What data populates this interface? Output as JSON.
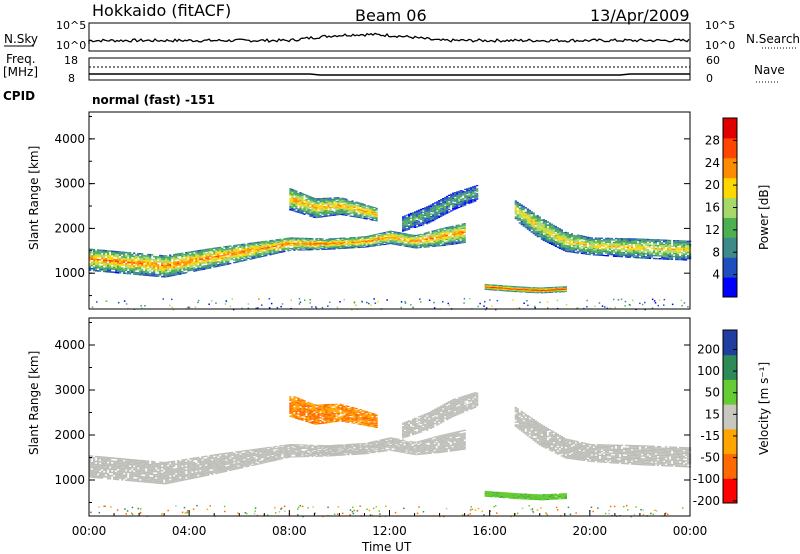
{
  "header": {
    "station": "Hokkaido (fitACF)",
    "beam": "Beam 06",
    "date": "13/Apr/2009"
  },
  "side_labels": {
    "nsky": "N.Sky",
    "nsearch": "N.Search",
    "freq_top": "Freq.",
    "freq_unit": "[MHz]",
    "nave": "Nave",
    "cpid": "CPID"
  },
  "noise_panel": {
    "left_ticks": [
      "10^5",
      "10^0"
    ],
    "right_ticks": [
      "10^5",
      "10^0"
    ]
  },
  "freq_panel": {
    "left_ticks": [
      "18",
      "8"
    ],
    "right_ticks": [
      "60",
      "0"
    ]
  },
  "cpid_text": "normal (fast) -151",
  "colors": {
    "power_scale": [
      "#0000ff",
      "#1f4fbf",
      "#3c8a8a",
      "#4caf50",
      "#a6d96a",
      "#ffd700",
      "#ff8c00",
      "#ff4500",
      "#e00000"
    ],
    "velocity_scale": [
      "#ff0000",
      "#ff6a00",
      "#ffa500",
      "#c8c8c0",
      "#66cc33",
      "#2e8b57",
      "#1f3fa0"
    ],
    "ground_scatter": "#bdbdb8"
  },
  "chart_data": [
    {
      "type": "heatmap",
      "title": "Power",
      "ylabel": "Slant Range [km]",
      "xlabel": "",
      "x_ticks": [],
      "y_ticks": [
        "1000",
        "2000",
        "3000",
        "4000"
      ],
      "ylim": [
        200,
        4600
      ],
      "xlim_hours": [
        0,
        24
      ],
      "colorbar": {
        "label": "Power [dB]",
        "ticks": [
          "4",
          "8",
          "12",
          "16",
          "20",
          "24",
          "28"
        ],
        "range": [
          0,
          32
        ]
      },
      "bands": [
        {
          "x": [
            0,
            3,
            5,
            7,
            8,
            9.5,
            11,
            12,
            13,
            14,
            15
          ],
          "center_km": [
            1300,
            1150,
            1350,
            1550,
            1650,
            1650,
            1700,
            1800,
            1700,
            1800,
            1900
          ],
          "width_km": [
            500,
            500,
            450,
            350,
            300,
            250,
            250,
            300,
            300,
            400,
            450
          ],
          "power_db": 24
        },
        {
          "x": [
            8,
            9,
            10,
            10.8,
            11.5
          ],
          "center_km": [
            2650,
            2450,
            2500,
            2400,
            2300
          ],
          "width_km": [
            500,
            450,
            400,
            350,
            300
          ],
          "power_db": 22
        },
        {
          "x": [
            12.5,
            13.5,
            14.5,
            15.5
          ],
          "center_km": [
            2100,
            2300,
            2600,
            2800
          ],
          "width_km": [
            350,
            400,
            400,
            350
          ],
          "power_db": 12
        },
        {
          "x": [
            17,
            18,
            19,
            20,
            22,
            24
          ],
          "center_km": [
            2400,
            2000,
            1700,
            1600,
            1550,
            1500
          ],
          "width_km": [
            450,
            500,
            450,
            400,
            450,
            450
          ],
          "power_db": 20
        },
        {
          "x": [
            15.8,
            17,
            18,
            19
          ],
          "center_km": [
            700,
            650,
            620,
            650
          ],
          "width_km": [
            120,
            120,
            120,
            120
          ],
          "power_db": 28
        }
      ]
    },
    {
      "type": "heatmap",
      "title": "Velocity",
      "ylabel": "Slant Range [km]",
      "xlabel": "Time UT",
      "x_ticks": [
        "00:00",
        "04:00",
        "08:00",
        "12:00",
        "16:00",
        "20:00",
        "00:00"
      ],
      "y_ticks": [
        "1000",
        "2000",
        "3000",
        "4000"
      ],
      "ylim": [
        200,
        4600
      ],
      "xlim_hours": [
        0,
        24
      ],
      "colorbar": {
        "label": "Velocity [m s⁻¹]",
        "ticks": [
          "200",
          "100",
          "50",
          "15",
          "-15",
          "-50",
          "-100",
          "-200"
        ],
        "range": [
          -250,
          250
        ]
      },
      "bands": [
        {
          "x": [
            0,
            3,
            5,
            7,
            8,
            9.5,
            11,
            12,
            13,
            14,
            15
          ],
          "center_km": [
            1300,
            1150,
            1350,
            1550,
            1650,
            1650,
            1700,
            1800,
            1700,
            1800,
            1900
          ],
          "width_km": [
            500,
            500,
            450,
            350,
            300,
            250,
            250,
            300,
            300,
            400,
            450
          ],
          "velocity": 0
        },
        {
          "x": [
            8,
            9,
            10,
            10.8,
            11.5
          ],
          "center_km": [
            2650,
            2450,
            2500,
            2400,
            2300
          ],
          "width_km": [
            500,
            450,
            400,
            350,
            300
          ],
          "velocity": -50
        },
        {
          "x": [
            12.5,
            13.5,
            14.5,
            15.5
          ],
          "center_km": [
            2100,
            2300,
            2600,
            2800
          ],
          "width_km": [
            350,
            400,
            400,
            350
          ],
          "velocity": 0
        },
        {
          "x": [
            17,
            18,
            19,
            20,
            22,
            24
          ],
          "center_km": [
            2400,
            2000,
            1700,
            1600,
            1550,
            1500
          ],
          "width_km": [
            450,
            500,
            450,
            400,
            450,
            450
          ],
          "velocity": 0
        },
        {
          "x": [
            15.8,
            17,
            18,
            19
          ],
          "center_km": [
            700,
            650,
            620,
            650
          ],
          "width_km": [
            120,
            120,
            120,
            120
          ],
          "velocity": 40
        }
      ]
    }
  ]
}
